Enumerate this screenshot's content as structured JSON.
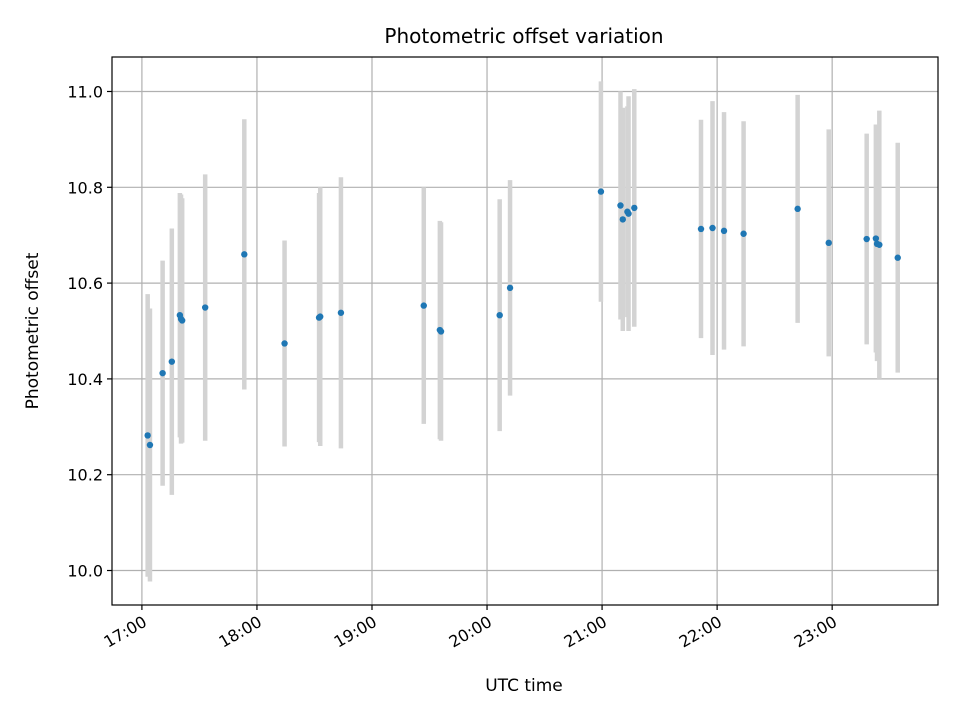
{
  "chart_data": {
    "type": "scatter",
    "title": "Photometric offset variation",
    "xlabel": "UTC time",
    "ylabel": "Photometric offset",
    "xlim": [
      16.74,
      23.92
    ],
    "ylim": [
      9.928,
      11.072
    ],
    "grid": true,
    "x_ticks": [
      {
        "value": 17,
        "label": "17:00"
      },
      {
        "value": 18,
        "label": "18:00"
      },
      {
        "value": 19,
        "label": "19:00"
      },
      {
        "value": 20,
        "label": "20:00"
      },
      {
        "value": 21,
        "label": "21:00"
      },
      {
        "value": 22,
        "label": "22:00"
      },
      {
        "value": 23,
        "label": "23:00"
      }
    ],
    "y_ticks": [
      {
        "value": 10.0,
        "label": "10.0"
      },
      {
        "value": 10.2,
        "label": "10.2"
      },
      {
        "value": 10.4,
        "label": "10.4"
      },
      {
        "value": 10.6,
        "label": "10.6"
      },
      {
        "value": 10.8,
        "label": "10.8"
      },
      {
        "value": 11.0,
        "label": "11.0"
      }
    ],
    "point_color": "#1f77b4",
    "errorbar_color": "#d3d3d3",
    "points": [
      {
        "x": 17.05,
        "y": 10.282,
        "err": 0.295
      },
      {
        "x": 17.07,
        "y": 10.262,
        "err": 0.285
      },
      {
        "x": 17.18,
        "y": 10.412,
        "err": 0.235
      },
      {
        "x": 17.26,
        "y": 10.436,
        "err": 0.278
      },
      {
        "x": 17.33,
        "y": 10.533,
        "err": 0.255
      },
      {
        "x": 17.34,
        "y": 10.525,
        "err": 0.26
      },
      {
        "x": 17.35,
        "y": 10.522,
        "err": 0.255
      },
      {
        "x": 17.55,
        "y": 10.549,
        "err": 0.278
      },
      {
        "x": 17.89,
        "y": 10.66,
        "err": 0.282
      },
      {
        "x": 18.24,
        "y": 10.474,
        "err": 0.215
      },
      {
        "x": 18.54,
        "y": 10.528,
        "err": 0.26
      },
      {
        "x": 18.55,
        "y": 10.53,
        "err": 0.27
      },
      {
        "x": 18.73,
        "y": 10.538,
        "err": 0.283
      },
      {
        "x": 19.45,
        "y": 10.553,
        "err": 0.247
      },
      {
        "x": 19.59,
        "y": 10.502,
        "err": 0.228
      },
      {
        "x": 19.6,
        "y": 10.499,
        "err": 0.228
      },
      {
        "x": 20.11,
        "y": 10.533,
        "err": 0.242
      },
      {
        "x": 20.2,
        "y": 10.59,
        "err": 0.225
      },
      {
        "x": 20.99,
        "y": 10.791,
        "err": 0.23
      },
      {
        "x": 21.16,
        "y": 10.762,
        "err": 0.238
      },
      {
        "x": 21.18,
        "y": 10.733,
        "err": 0.233
      },
      {
        "x": 21.22,
        "y": 10.749,
        "err": 0.22
      },
      {
        "x": 21.23,
        "y": 10.745,
        "err": 0.245
      },
      {
        "x": 21.28,
        "y": 10.757,
        "err": 0.248
      },
      {
        "x": 21.86,
        "y": 10.713,
        "err": 0.228
      },
      {
        "x": 21.96,
        "y": 10.715,
        "err": 0.265
      },
      {
        "x": 22.06,
        "y": 10.709,
        "err": 0.248
      },
      {
        "x": 22.23,
        "y": 10.703,
        "err": 0.235
      },
      {
        "x": 22.7,
        "y": 10.755,
        "err": 0.238
      },
      {
        "x": 22.97,
        "y": 10.684,
        "err": 0.237
      },
      {
        "x": 23.3,
        "y": 10.692,
        "err": 0.22
      },
      {
        "x": 23.38,
        "y": 10.693,
        "err": 0.238
      },
      {
        "x": 23.39,
        "y": 10.682,
        "err": 0.245
      },
      {
        "x": 23.41,
        "y": 10.68,
        "err": 0.28
      },
      {
        "x": 23.57,
        "y": 10.653,
        "err": 0.24
      }
    ]
  }
}
